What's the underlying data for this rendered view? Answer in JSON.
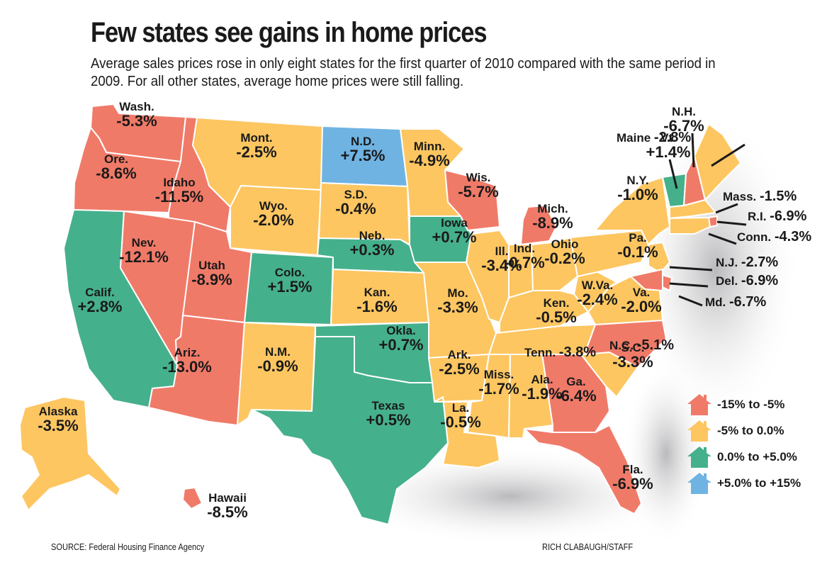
{
  "title": "Few states see gains in home prices",
  "subtitle": "Average sales prices rose in only eight states for the first quarter of 2010 compared with the same period in 2009. For all other states, average home prices were still falling.",
  "colors": {
    "decline_large": "#f07a68",
    "decline_small": "#fdc661",
    "gain_small": "#45b08c",
    "gain_large": "#6fb3e3",
    "water_shadow": "#b9b9bd"
  },
  "legend": [
    {
      "label": "-15% to -5%",
      "color_key": "decline_large"
    },
    {
      "label": "-5% to 0.0%",
      "color_key": "decline_small"
    },
    {
      "label": "0.0% to +5.0%",
      "color_key": "gain_small"
    },
    {
      "label": "+5.0% to +15%",
      "color_key": "gain_large"
    }
  ],
  "states": [
    {
      "name": "Wash.",
      "value": "-5.3%",
      "category": "decline_large"
    },
    {
      "name": "Ore.",
      "value": "-8.6%",
      "category": "decline_large"
    },
    {
      "name": "Calif.",
      "value": "+2.8%",
      "category": "gain_small"
    },
    {
      "name": "Idaho",
      "value": "-11.5%",
      "category": "decline_large"
    },
    {
      "name": "Nev.",
      "value": "-12.1%",
      "category": "decline_large"
    },
    {
      "name": "Utah",
      "value": "-8.9%",
      "category": "decline_large"
    },
    {
      "name": "Ariz.",
      "value": "-13.0%",
      "category": "decline_large"
    },
    {
      "name": "Mont.",
      "value": "-2.5%",
      "category": "decline_small"
    },
    {
      "name": "Wyo.",
      "value": "-2.0%",
      "category": "decline_small"
    },
    {
      "name": "Colo.",
      "value": "+1.5%",
      "category": "gain_small"
    },
    {
      "name": "N.M.",
      "value": "-0.9%",
      "category": "decline_small"
    },
    {
      "name": "N.D.",
      "value": "+7.5%",
      "category": "gain_large"
    },
    {
      "name": "S.D.",
      "value": "-0.4%",
      "category": "decline_small"
    },
    {
      "name": "Neb.",
      "value": "+0.3%",
      "category": "gain_small"
    },
    {
      "name": "Kan.",
      "value": "-1.6%",
      "category": "decline_small"
    },
    {
      "name": "Okla.",
      "value": "+0.7%",
      "category": "gain_small"
    },
    {
      "name": "Texas",
      "value": "+0.5%",
      "category": "gain_small"
    },
    {
      "name": "Minn.",
      "value": "-4.9%",
      "category": "decline_small"
    },
    {
      "name": "Iowa",
      "value": "+0.7%",
      "category": "gain_small"
    },
    {
      "name": "Mo.",
      "value": "-3.3%",
      "category": "decline_small"
    },
    {
      "name": "Ark.",
      "value": "-2.5%",
      "category": "decline_small"
    },
    {
      "name": "La.",
      "value": "-0.5%",
      "category": "decline_small"
    },
    {
      "name": "Wis.",
      "value": "-5.7%",
      "category": "decline_large"
    },
    {
      "name": "Ill.",
      "value": "-3.4%",
      "category": "decline_small"
    },
    {
      "name": "Mich.",
      "value": "-8.9%",
      "category": "decline_large"
    },
    {
      "name": "Ind.",
      "value": "-0.7%",
      "category": "decline_small"
    },
    {
      "name": "Ohio",
      "value": "-0.2%",
      "category": "decline_small"
    },
    {
      "name": "Ken.",
      "value": "-0.5%",
      "category": "decline_small"
    },
    {
      "name": "Tenn.",
      "value": "-3.8%",
      "category": "decline_small"
    },
    {
      "name": "Miss.",
      "value": "-1.7%",
      "category": "decline_small"
    },
    {
      "name": "Ala.",
      "value": "-1.9%",
      "category": "decline_small"
    },
    {
      "name": "Ga.",
      "value": "-6.4%",
      "category": "decline_large"
    },
    {
      "name": "Fla.",
      "value": "-6.9%",
      "category": "decline_large"
    },
    {
      "name": "S.C.",
      "value": "-3.3%",
      "category": "decline_small"
    },
    {
      "name": "N.C.",
      "value": "-5.1%",
      "category": "decline_large"
    },
    {
      "name": "Va.",
      "value": "-2.0%",
      "category": "decline_small"
    },
    {
      "name": "W.Va.",
      "value": "-2.4%",
      "category": "decline_small"
    },
    {
      "name": "Pa.",
      "value": "-0.1%",
      "category": "decline_small"
    },
    {
      "name": "N.Y.",
      "value": "-1.0%",
      "category": "decline_small"
    },
    {
      "name": "Vt.",
      "value": "+1.4%",
      "category": "gain_small"
    },
    {
      "name": "N.H.",
      "value": "-6.7%",
      "category": "decline_large"
    },
    {
      "name": "Maine",
      "value": "-2.8%",
      "category": "decline_small"
    },
    {
      "name": "Mass.",
      "value": "-1.5%",
      "category": "decline_small"
    },
    {
      "name": "R.I.",
      "value": "-6.9%",
      "category": "decline_large"
    },
    {
      "name": "Conn.",
      "value": "-4.3%",
      "category": "decline_small"
    },
    {
      "name": "N.J.",
      "value": "-2.7%",
      "category": "decline_small"
    },
    {
      "name": "Del.",
      "value": "-6.9%",
      "category": "decline_large"
    },
    {
      "name": "Md.",
      "value": "-6.7%",
      "category": "decline_large"
    },
    {
      "name": "Alaska",
      "value": "-3.5%",
      "category": "decline_small"
    },
    {
      "name": "Hawaii",
      "value": "-8.5%",
      "category": "decline_large"
    }
  ],
  "source": "SOURCE: Federal Housing Finance Agency",
  "credit": "RICH CLABAUGH/STAFF"
}
